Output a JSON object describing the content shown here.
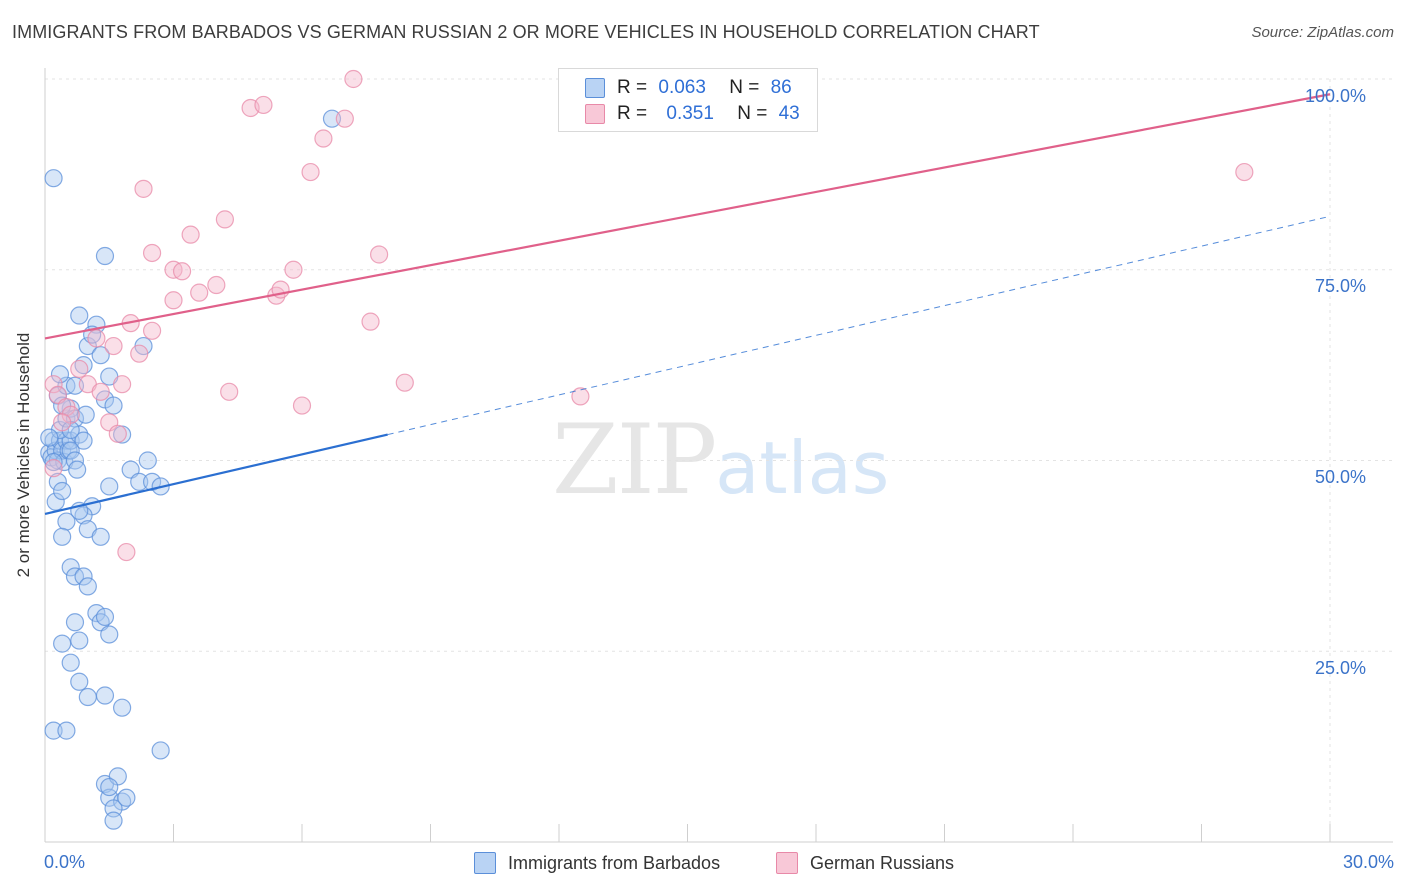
{
  "title": "IMMIGRANTS FROM BARBADOS VS GERMAN RUSSIAN 2 OR MORE VEHICLES IN HOUSEHOLD CORRELATION CHART",
  "source": "Source: ZipAtlas.com",
  "watermark": {
    "zip": "ZIP",
    "atlas": "atlas"
  },
  "legend_top": {
    "r_label": "R =",
    "n_label": "N =",
    "rows": [
      {
        "r": "0.063",
        "n": "86"
      },
      {
        "r": "0.351",
        "n": "43"
      }
    ]
  },
  "colors": {
    "blue_fill": "#a9c8f0",
    "blue_stroke": "#5b8fd9",
    "blue_line": "#2b6fd1",
    "pink_fill": "#f5b8cc",
    "pink_stroke": "#e889a8",
    "pink_line": "#e0608a",
    "grid": "#e3e3e3",
    "tick_text": "#3b73c9"
  },
  "chart_data": {
    "type": "scatter",
    "title": "IMMIGRANTS FROM BARBADOS VS GERMAN RUSSIAN 2 OR MORE VEHICLES IN HOUSEHOLD CORRELATION CHART",
    "xlabel": "",
    "ylabel": "2 or more Vehicles in Household",
    "xlim": [
      0,
      30
    ],
    "ylim": [
      0,
      100
    ],
    "x_tick_labels": [
      "0.0%",
      "30.0%"
    ],
    "y_ticks": [
      25,
      50,
      75,
      100
    ],
    "y_tick_labels": [
      "25.0%",
      "50.0%",
      "75.0%",
      "100.0%"
    ],
    "grid": true,
    "series": [
      {
        "name": "Immigrants from Barbados",
        "r": 0.063,
        "n": 86,
        "trend_solid": {
          "x": [
            0,
            8
          ],
          "y": [
            43.0,
            53.4
          ]
        },
        "trend_dashed": {
          "x": [
            8,
            30
          ],
          "y": [
            53.4,
            82.0
          ]
        },
        "points": [
          [
            0.1,
            51.0
          ],
          [
            0.15,
            50.4
          ],
          [
            0.2,
            52.6
          ],
          [
            0.25,
            51.3
          ],
          [
            0.3,
            50.0
          ],
          [
            0.35,
            52.6
          ],
          [
            0.4,
            51.3
          ],
          [
            0.45,
            49.8
          ],
          [
            0.5,
            52.6
          ],
          [
            0.55,
            51.3
          ],
          [
            0.6,
            52.6
          ],
          [
            0.2,
            49.8
          ],
          [
            0.3,
            47.2
          ],
          [
            0.25,
            44.6
          ],
          [
            0.4,
            46.0
          ],
          [
            0.35,
            54.0
          ],
          [
            0.5,
            55.5
          ],
          [
            0.6,
            56.8
          ],
          [
            0.7,
            55.5
          ],
          [
            0.8,
            53.4
          ],
          [
            0.9,
            52.6
          ],
          [
            0.6,
            51.3
          ],
          [
            0.7,
            50.0
          ],
          [
            0.75,
            48.8
          ],
          [
            0.3,
            58.5
          ],
          [
            0.5,
            59.8
          ],
          [
            0.35,
            61.3
          ],
          [
            0.9,
            62.5
          ],
          [
            1.0,
            65.0
          ],
          [
            1.2,
            67.8
          ],
          [
            0.8,
            69.0
          ],
          [
            1.1,
            66.5
          ],
          [
            1.3,
            63.8
          ],
          [
            1.5,
            61.0
          ],
          [
            0.7,
            59.8
          ],
          [
            0.4,
            57.2
          ],
          [
            0.6,
            54.0
          ],
          [
            0.95,
            56.0
          ],
          [
            1.4,
            58.0
          ],
          [
            1.6,
            57.2
          ],
          [
            1.8,
            53.4
          ],
          [
            2.0,
            48.8
          ],
          [
            2.2,
            47.2
          ],
          [
            1.5,
            46.6
          ],
          [
            1.1,
            44.0
          ],
          [
            0.9,
            42.8
          ],
          [
            0.8,
            43.4
          ],
          [
            0.5,
            42.0
          ],
          [
            0.4,
            40.0
          ],
          [
            1.0,
            41.0
          ],
          [
            1.3,
            40.0
          ],
          [
            0.6,
            36.0
          ],
          [
            0.7,
            34.8
          ],
          [
            0.9,
            34.8
          ],
          [
            1.0,
            33.5
          ],
          [
            1.2,
            30.0
          ],
          [
            1.3,
            28.8
          ],
          [
            1.4,
            29.5
          ],
          [
            1.5,
            27.2
          ],
          [
            0.8,
            26.4
          ],
          [
            0.7,
            28.8
          ],
          [
            0.4,
            26.0
          ],
          [
            0.6,
            23.5
          ],
          [
            0.8,
            21.0
          ],
          [
            1.0,
            19.0
          ],
          [
            1.4,
            19.2
          ],
          [
            1.8,
            17.6
          ],
          [
            0.2,
            14.6
          ],
          [
            0.5,
            14.6
          ],
          [
            2.7,
            12.0
          ],
          [
            1.4,
            7.6
          ],
          [
            1.5,
            5.8
          ],
          [
            1.8,
            5.3
          ],
          [
            1.6,
            4.4
          ],
          [
            1.9,
            5.8
          ],
          [
            1.6,
            2.8
          ],
          [
            1.7,
            8.6
          ],
          [
            1.5,
            7.2
          ],
          [
            0.2,
            87.0
          ],
          [
            1.4,
            76.8
          ],
          [
            2.3,
            65.0
          ],
          [
            2.4,
            50.0
          ],
          [
            2.5,
            47.2
          ],
          [
            2.7,
            46.6
          ],
          [
            6.7,
            94.8
          ],
          [
            0.1,
            53.0
          ]
        ]
      },
      {
        "name": "German Russians",
        "r": 0.351,
        "n": 43,
        "trend_solid": {
          "x": [
            0,
            30
          ],
          "y": [
            66.0,
            98.0
          ]
        },
        "points": [
          [
            0.2,
            60.0
          ],
          [
            0.3,
            58.6
          ],
          [
            0.5,
            57.0
          ],
          [
            0.6,
            56.0
          ],
          [
            0.4,
            55.0
          ],
          [
            0.2,
            49.0
          ],
          [
            0.8,
            62.0
          ],
          [
            1.0,
            60.0
          ],
          [
            1.2,
            66.0
          ],
          [
            1.3,
            59.0
          ],
          [
            1.6,
            65.0
          ],
          [
            1.8,
            60.0
          ],
          [
            2.0,
            68.0
          ],
          [
            2.2,
            64.0
          ],
          [
            2.5,
            67.0
          ],
          [
            3.0,
            71.0
          ],
          [
            2.3,
            85.6
          ],
          [
            2.5,
            77.2
          ],
          [
            3.0,
            75.0
          ],
          [
            3.2,
            74.8
          ],
          [
            3.4,
            79.6
          ],
          [
            3.6,
            72.0
          ],
          [
            4.0,
            73.0
          ],
          [
            4.2,
            81.6
          ],
          [
            4.3,
            59.0
          ],
          [
            4.8,
            96.2
          ],
          [
            5.1,
            96.6
          ],
          [
            5.4,
            71.6
          ],
          [
            5.5,
            72.4
          ],
          [
            5.8,
            75.0
          ],
          [
            6.2,
            87.8
          ],
          [
            6.5,
            92.2
          ],
          [
            7.0,
            94.8
          ],
          [
            7.2,
            100.0
          ],
          [
            7.6,
            68.2
          ],
          [
            7.8,
            77.0
          ],
          [
            6.0,
            57.2
          ],
          [
            8.4,
            60.2
          ],
          [
            12.5,
            58.4
          ],
          [
            28.0,
            87.8
          ],
          [
            1.5,
            55.0
          ],
          [
            1.7,
            53.5
          ],
          [
            1.9,
            38.0
          ]
        ]
      }
    ]
  },
  "bottom_legend": [
    "Immigrants from Barbados",
    "German Russians"
  ]
}
